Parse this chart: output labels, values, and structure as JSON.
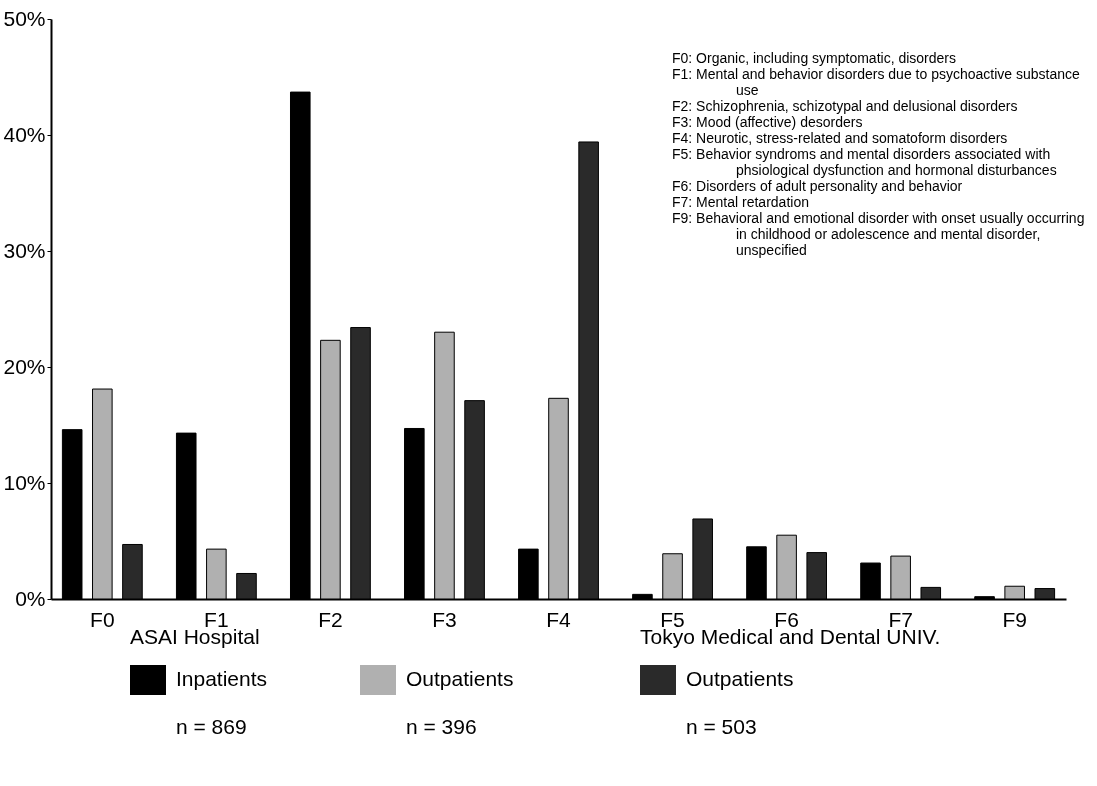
{
  "chart_data": {
    "type": "bar",
    "categories": [
      "F0",
      "F1",
      "F2",
      "F3",
      "F4",
      "F5",
      "F6",
      "F7",
      "F9"
    ],
    "series": [
      {
        "name": "Inpatients",
        "color": "#000000",
        "values": [
          14.6,
          14.3,
          43.7,
          14.7,
          4.3,
          0.4,
          4.5,
          3.1,
          0.2
        ]
      },
      {
        "name": "Outpatients",
        "color": "#b0b0b0",
        "values": [
          18.1,
          4.3,
          22.3,
          23.0,
          17.3,
          3.9,
          5.5,
          3.7,
          1.1
        ]
      },
      {
        "name": "Outpatients",
        "color": "#2a2a2a",
        "values": [
          4.7,
          2.2,
          23.4,
          17.1,
          39.4,
          6.9,
          4.0,
          1.0,
          0.9
        ]
      }
    ],
    "ylim": [
      0,
      50
    ],
    "yticks": [
      {
        "value": 0,
        "label": "0%"
      },
      {
        "value": 10,
        "label": "10%"
      },
      {
        "value": 20,
        "label": "20%"
      },
      {
        "value": 30,
        "label": "30%"
      },
      {
        "value": 40,
        "label": "40%"
      },
      {
        "value": 50,
        "label": "50%"
      }
    ],
    "grid": false,
    "legend": "bottom",
    "annotations": [
      "F0: Organic, including symptomatic, disorders",
      "F1: Mental and behavior disorders due to psychoactive substance use",
      "F2: Schizophrenia, schizotypal and delusional disorders",
      "F3: Mood (affective) desorders",
      "F4: Neurotic, stress-related and somatoform disorders",
      "F5: Behavior syndroms and mental disorders associated with phsiological dysfunction and hormonal disturbances",
      "F6: Disorders of adult personality and behavior",
      "F7: Mental retardation",
      "F9: Behavioral and emotional disorder with onset usually occurring in childhood or adolescence and mental disorder, unspecified",
      "ASAI Hospital",
      "Tokyo Medical and Dental UNIV.",
      "n = 869",
      "n = 396",
      "n = 503"
    ]
  }
}
